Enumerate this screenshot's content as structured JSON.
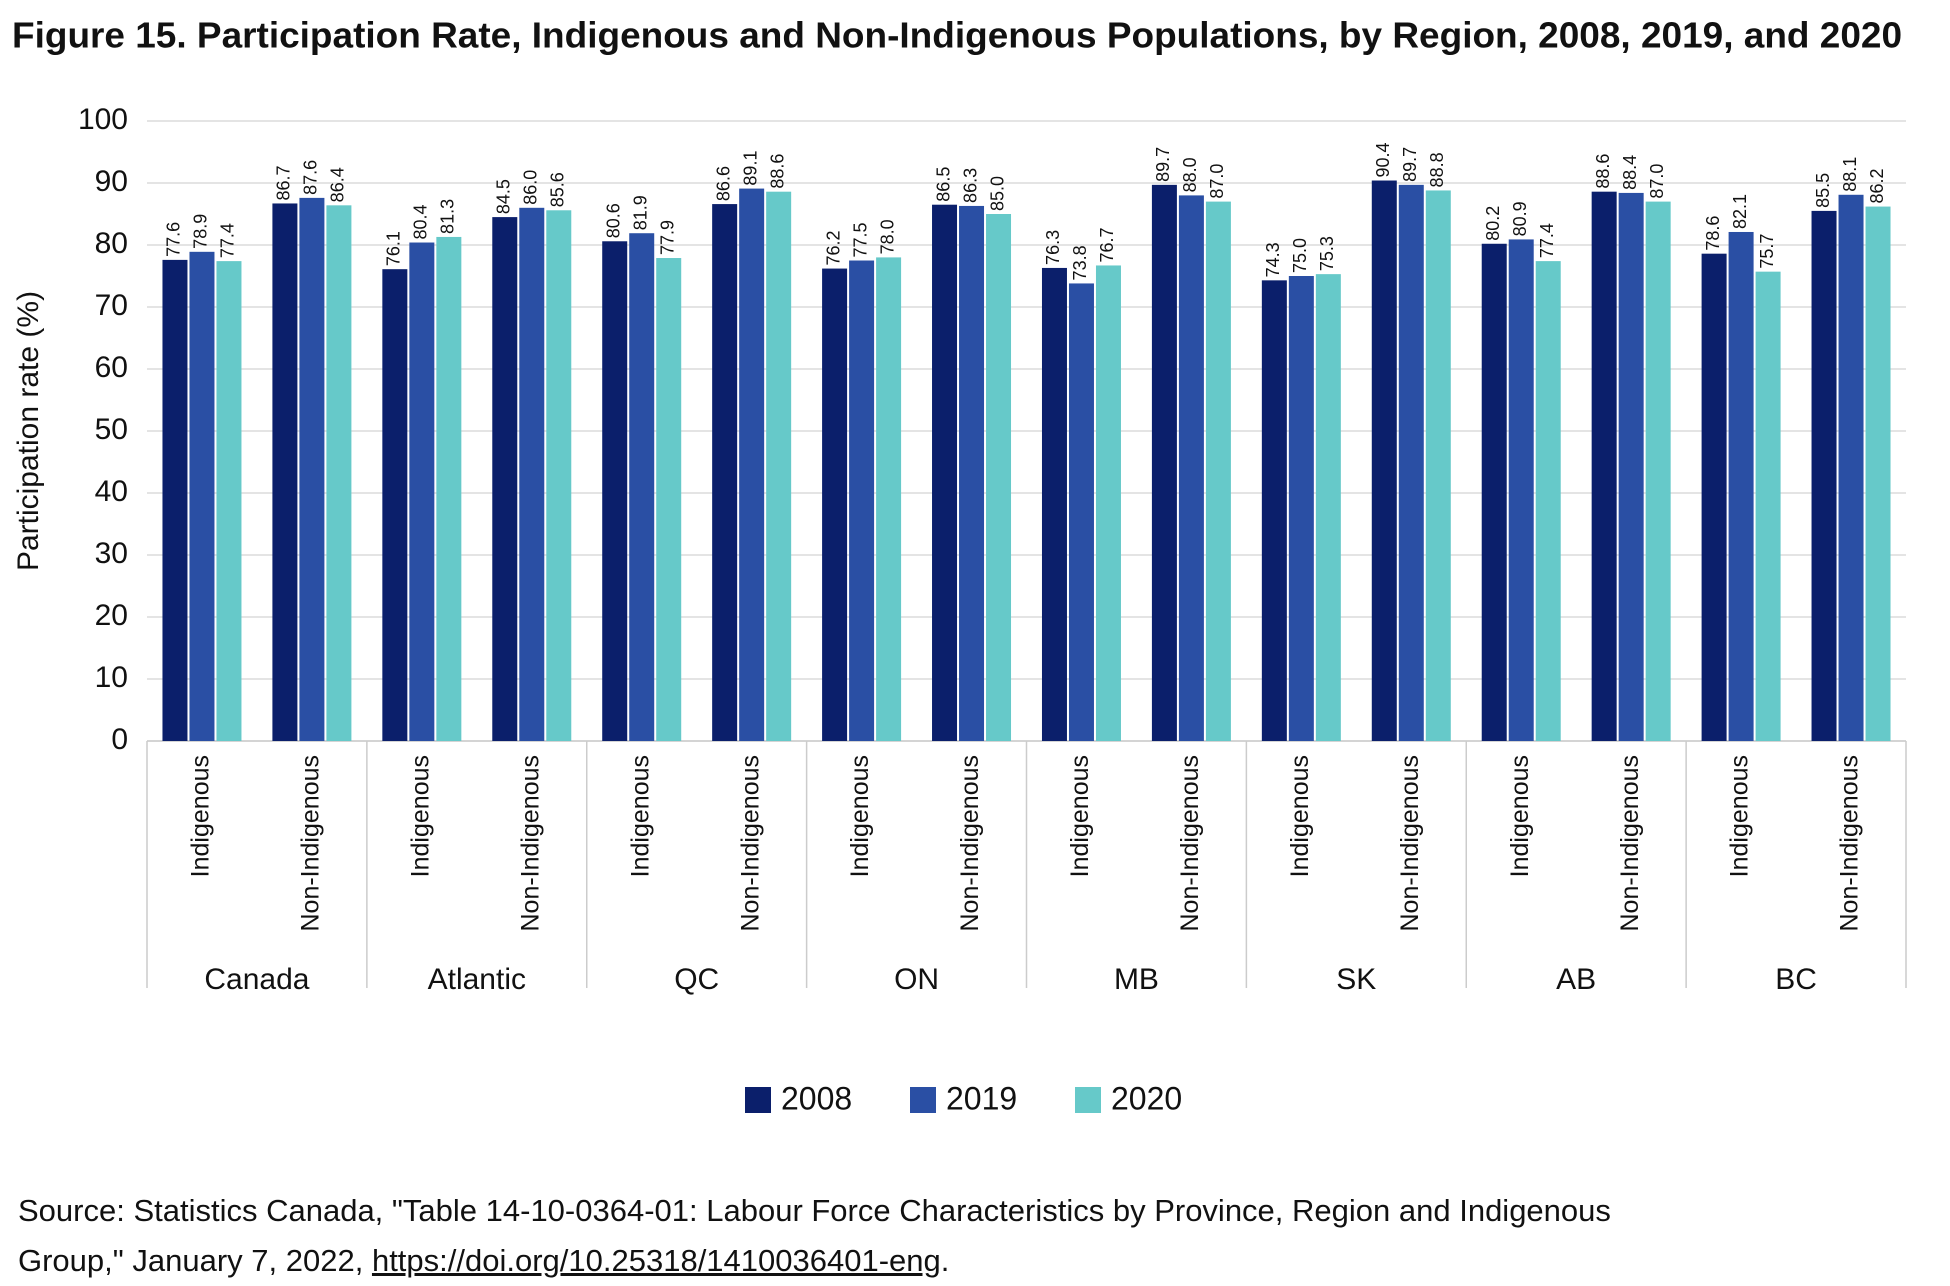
{
  "chart_data": {
    "type": "grouped-bar",
    "title": "Figure 15. Participation Rate, Indigenous and Non-Indigenous Populations, by Region, 2008, 2019, and 2020",
    "y_label": "Participation rate (%)",
    "categories": [
      "Indigenous",
      "Non-Indigenous",
      "Indigenous",
      "Non-Indigenous",
      "Indigenous",
      "Non-Indigenous",
      "Indigenous",
      "Non-Indigenous",
      "Indigenous",
      "Non-Indigenous",
      "Indigenous",
      "Non-Indigenous",
      "Indigenous",
      "Non-Indigenous",
      "Indigenous",
      "Non-Indigenous"
    ],
    "groups": [
      "Canada",
      "Atlantic",
      "QC",
      "ON",
      "MB",
      "SK",
      "AB",
      "BC"
    ],
    "series": [
      {
        "name": "2008",
        "color": "#0b1f6b",
        "values": [
          77.6,
          86.7,
          76.1,
          84.5,
          80.6,
          86.6,
          76.2,
          86.5,
          76.3,
          89.7,
          74.3,
          90.4,
          80.2,
          88.6,
          78.6,
          85.5
        ],
        "value_labels": [
          "77.6",
          "86.7",
          "76.1",
          "84.5",
          "80.6",
          "86.6",
          "76.2",
          "86.5",
          "76.3",
          "89.7",
          "74.3",
          "90.4",
          "80.2",
          "88.6",
          "78.6",
          "85.5"
        ]
      },
      {
        "name": "2019",
        "color": "#2a4fa4",
        "values": [
          78.9,
          87.6,
          80.4,
          86.0,
          81.9,
          89.1,
          77.5,
          86.3,
          73.8,
          88.0,
          75.0,
          89.7,
          80.9,
          88.4,
          82.1,
          88.1
        ],
        "value_labels": [
          "78.9",
          "87.6",
          "80.4",
          "86.0",
          "81.9",
          "89.1",
          "77.5",
          "86.3",
          "73.8",
          "88.0",
          "75.0",
          "89.7",
          "80.9",
          "88.4",
          "82.1",
          "88.1"
        ]
      },
      {
        "name": "2020",
        "color": "#66c9c9",
        "values": [
          77.4,
          86.4,
          81.3,
          85.6,
          77.9,
          88.6,
          78.0,
          85.0,
          76.7,
          87.0,
          75.3,
          88.8,
          77.4,
          87.0,
          75.7,
          86.2
        ],
        "value_labels": [
          "77.4",
          "86.4",
          "81.3",
          "85.6",
          "77.9",
          "88.6",
          "78.0",
          "85.0",
          "76.7",
          "87.0",
          "75.3",
          "88.8",
          "77.4",
          "87.0",
          "75.7",
          "86.2"
        ]
      }
    ],
    "ylim": [
      0,
      100
    ],
    "yticks": [
      0,
      10,
      20,
      30,
      40,
      50,
      60,
      70,
      80,
      90,
      100
    ],
    "grid": true,
    "legend": "bottom",
    "source": "Source: Statistics Canada, \"Table 14-10-0364-01: Labour Force Characteristics by Province, Region and Indigenous Group,\" January 7, 2022, ",
    "source_link": "https://doi.org/10.25318/1410036401-eng",
    "source_end": "."
  }
}
